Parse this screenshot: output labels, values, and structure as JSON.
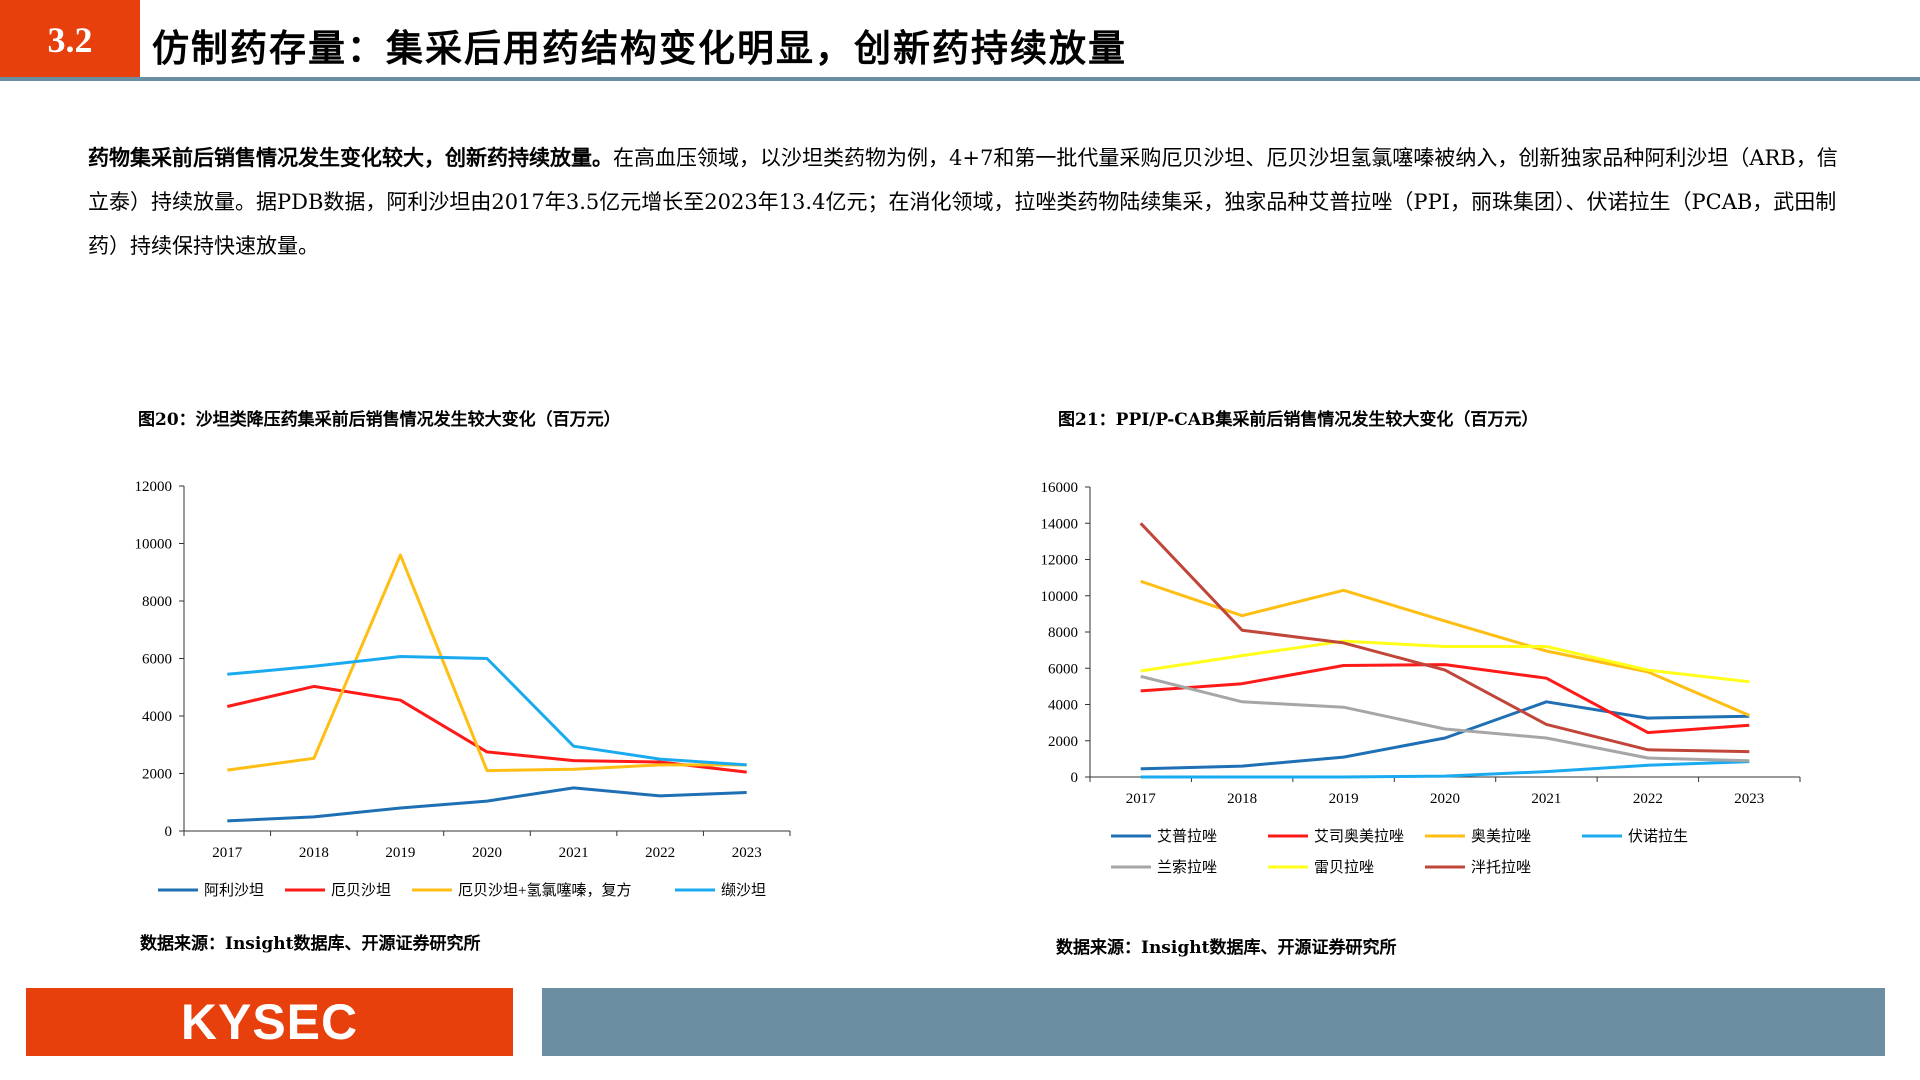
{
  "header": {
    "section_number": "3.2",
    "title": "仿制药存量：集采后用药结构变化明显，创新药持续放量"
  },
  "intro": {
    "lead": "药物集采前后销售情况发生变化较大，创新药持续放量。",
    "body": "在高血压领域，以沙坦类药物为例，4+7和第一批代量采购厄贝沙坦、厄贝沙坦氢氯噻嗪被纳入，创新独家品种阿利沙坦（ARB，信立泰）持续放量。据PDB数据，阿利沙坦由2017年3.5亿元增长至2023年13.4亿元；在消化领域，拉唑类药物陆续集采，独家品种艾普拉唑（PPI，丽珠集团）、伏诺拉生（PCAB，武田制药）持续保持快速放量。"
  },
  "figures": [
    {
      "title": "图20：沙坦类降压药集采前后销售情况发生较大变化（百万元）",
      "source": "数据来源：Insight数据库、开源证券研究所"
    },
    {
      "title": "图21：PPI/P-CAB集采前后销售情况发生较大变化（百万元）",
      "source": "数据来源：Insight数据库、开源证券研究所"
    }
  ],
  "chart_data": [
    {
      "type": "line",
      "title": "图20：沙坦类降压药集采前后销售情况发生较大变化（百万元）",
      "x": [
        "2017",
        "2018",
        "2019",
        "2020",
        "2021",
        "2022",
        "2023"
      ],
      "ylim": [
        0,
        12000
      ],
      "yticks": [
        0,
        2000,
        4000,
        6000,
        8000,
        10000,
        12000
      ],
      "legend_position": "bottom",
      "grid": false,
      "series": [
        {
          "name": "阿利沙坦",
          "color": "#1f6fb4",
          "values": [
            350,
            490,
            800,
            1040,
            1500,
            1220,
            1340
          ]
        },
        {
          "name": "厄贝沙坦",
          "color": "#ff1a1a",
          "values": [
            4330,
            5030,
            4550,
            2750,
            2450,
            2400,
            2050
          ]
        },
        {
          "name": "厄贝沙坦+氢氯噻嗪，复方",
          "color": "#ffbe14",
          "values": [
            2120,
            2530,
            9600,
            2100,
            2150,
            2300,
            2300
          ]
        },
        {
          "name": "缬沙坦",
          "color": "#1aaaf0",
          "values": [
            5450,
            5730,
            6070,
            6000,
            2950,
            2500,
            2300
          ]
        }
      ]
    },
    {
      "type": "line",
      "title": "图21：PPI/P-CAB集采前后销售情况发生较大变化（百万元）",
      "x": [
        "2017",
        "2018",
        "2019",
        "2020",
        "2021",
        "2022",
        "2023"
      ],
      "ylim": [
        0,
        16000
      ],
      "yticks": [
        0,
        2000,
        4000,
        6000,
        8000,
        10000,
        12000,
        14000,
        16000
      ],
      "legend_position": "bottom",
      "grid": false,
      "series": [
        {
          "name": "艾普拉唑",
          "color": "#1f6fb4",
          "values": [
            450,
            600,
            1100,
            2150,
            4150,
            3250,
            3350
          ]
        },
        {
          "name": "艾司奥美拉唑",
          "color": "#ff1a1a",
          "values": [
            4750,
            5150,
            6150,
            6200,
            5450,
            2450,
            2850
          ]
        },
        {
          "name": "奥美拉唑",
          "color": "#ffbe14",
          "values": [
            10800,
            8900,
            10300,
            8600,
            6950,
            5800,
            3400
          ]
        },
        {
          "name": "伏诺拉生",
          "color": "#1aaaf0",
          "values": [
            0,
            0,
            0,
            50,
            300,
            650,
            850
          ]
        },
        {
          "name": "兰索拉唑",
          "color": "#a6a6a6",
          "values": [
            5550,
            4150,
            3850,
            2650,
            2150,
            1050,
            900
          ]
        },
        {
          "name": "雷贝拉唑",
          "color": "#ffff1a",
          "values": [
            5850,
            6700,
            7500,
            7200,
            7200,
            5900,
            5250
          ]
        },
        {
          "name": "泮托拉唑",
          "color": "#c0463a",
          "values": [
            14000,
            8100,
            7400,
            5900,
            2900,
            1500,
            1400
          ]
        }
      ]
    }
  ],
  "footer": {
    "logo": "KYSEC"
  }
}
